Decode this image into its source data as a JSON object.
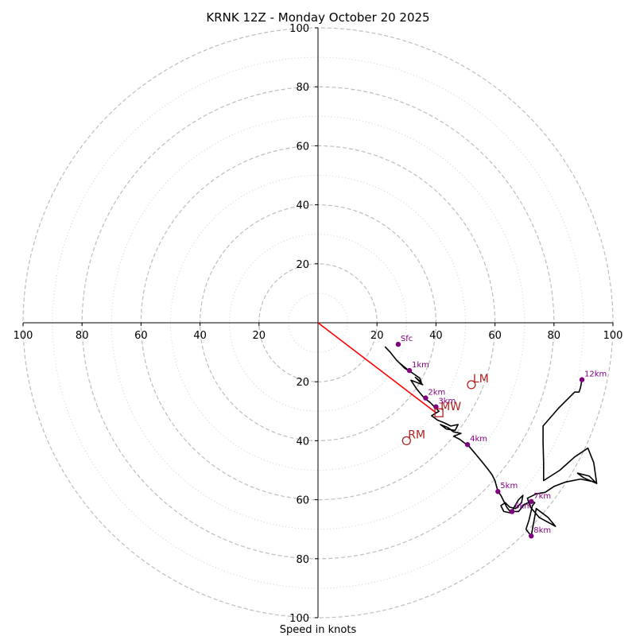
{
  "chart_data": {
    "type": "hodograph",
    "title": "KRNK 12Z - Monday October 20 2025",
    "xlabel": "Speed in knots",
    "range": [
      -100,
      100
    ],
    "major_rings": [
      20,
      40,
      60,
      80,
      100
    ],
    "minor_rings": [
      10,
      30,
      50,
      70,
      90
    ],
    "x_ticks": [
      {
        "value": -100,
        "label": "100"
      },
      {
        "value": -80,
        "label": "80"
      },
      {
        "value": -60,
        "label": "60"
      },
      {
        "value": -40,
        "label": "40"
      },
      {
        "value": -20,
        "label": "20"
      },
      {
        "value": 20,
        "label": "20"
      },
      {
        "value": 40,
        "label": "40"
      },
      {
        "value": 60,
        "label": "60"
      },
      {
        "value": 80,
        "label": "80"
      },
      {
        "value": 100,
        "label": "100"
      }
    ],
    "y_ticks": [
      {
        "value": 100,
        "label": "100"
      },
      {
        "value": 80,
        "label": "80"
      },
      {
        "value": 60,
        "label": "60"
      },
      {
        "value": 40,
        "label": "40"
      },
      {
        "value": 20,
        "label": "20"
      },
      {
        "value": -20,
        "label": "20"
      },
      {
        "value": -40,
        "label": "40"
      },
      {
        "value": -60,
        "label": "60"
      },
      {
        "value": -80,
        "label": "80"
      },
      {
        "value": -100,
        "label": "100"
      }
    ],
    "trace": [
      [
        22.7,
        -8.1
      ],
      [
        24.5,
        -10
      ],
      [
        26.5,
        -12.5
      ],
      [
        28.5,
        -14.5
      ],
      [
        30.5,
        -16
      ],
      [
        27.5,
        -13.5
      ],
      [
        29.5,
        -15.5
      ],
      [
        32,
        -17
      ],
      [
        34.5,
        -18.8
      ],
      [
        35,
        -20.2
      ],
      [
        33,
        -18.5
      ],
      [
        35.5,
        -21
      ],
      [
        31.5,
        -19.5
      ],
      [
        33.5,
        -22.5
      ],
      [
        36,
        -25.5
      ],
      [
        38,
        -27
      ],
      [
        40,
        -29
      ],
      [
        41,
        -30
      ],
      [
        38.5,
        -31.5
      ],
      [
        40.5,
        -33
      ],
      [
        43,
        -34
      ],
      [
        45,
        -35
      ],
      [
        47.5,
        -34.5
      ],
      [
        46.5,
        -36.5
      ],
      [
        43.5,
        -36
      ],
      [
        41.5,
        -34.5
      ],
      [
        44,
        -35.5
      ],
      [
        46,
        -37
      ],
      [
        48.5,
        -37.5
      ],
      [
        46,
        -38.5
      ],
      [
        48,
        -39.5
      ],
      [
        50,
        -41
      ],
      [
        50.7,
        -41.3
      ],
      [
        53,
        -44
      ],
      [
        55.5,
        -47
      ],
      [
        57.5,
        -49.5
      ],
      [
        59,
        -51.5
      ],
      [
        60,
        -53.5
      ],
      [
        61,
        -57.2
      ],
      [
        62,
        -58.5
      ],
      [
        63,
        -60.5
      ],
      [
        64,
        -62.5
      ],
      [
        65.5,
        -64.5
      ],
      [
        63,
        -64
      ],
      [
        62,
        -62
      ],
      [
        63.5,
        -61
      ],
      [
        65,
        -62.5
      ],
      [
        67,
        -63
      ],
      [
        69,
        -61
      ],
      [
        69.5,
        -58.5
      ],
      [
        68,
        -60
      ],
      [
        66.5,
        -62.5
      ],
      [
        65.8,
        -64
      ],
      [
        68,
        -64
      ],
      [
        70,
        -61.5
      ],
      [
        72.5,
        -60.5
      ],
      [
        73.5,
        -61
      ],
      [
        72.7,
        -62
      ],
      [
        71.5,
        -67
      ],
      [
        70.5,
        -70
      ],
      [
        72.3,
        -72.3
      ],
      [
        74,
        -63
      ],
      [
        76,
        -64.5
      ],
      [
        78,
        -66
      ],
      [
        80.5,
        -69
      ],
      [
        75,
        -66
      ],
      [
        72,
        -62.5
      ],
      [
        71,
        -59.5
      ],
      [
        74,
        -58
      ],
      [
        77,
        -57.5
      ],
      [
        80,
        -55.5
      ],
      [
        84,
        -54
      ],
      [
        89,
        -53
      ],
      [
        94,
        -54
      ],
      [
        92,
        -52
      ],
      [
        88,
        -51
      ],
      [
        90,
        -52.5
      ],
      [
        94.5,
        -54.5
      ],
      [
        93.5,
        -47.5
      ],
      [
        91.5,
        -42.5
      ],
      [
        87,
        -45.5
      ],
      [
        82,
        -50
      ],
      [
        76.5,
        -53.5
      ],
      [
        76.5,
        -47.5
      ],
      [
        76.3,
        -40.5
      ],
      [
        76.3,
        -35
      ],
      [
        81.5,
        -29
      ],
      [
        87,
        -23.5
      ],
      [
        88.5,
        -23.5
      ],
      [
        89,
        -22
      ],
      [
        89.5,
        -19.3
      ]
    ],
    "height_markers": [
      {
        "label": "Sfc",
        "u": 27.2,
        "v": -7.3
      },
      {
        "label": "1km",
        "u": 31.0,
        "v": -16.2
      },
      {
        "label": "2km",
        "u": 36.5,
        "v": -25.5
      },
      {
        "label": "3km",
        "u": 40.0,
        "v": -28.5
      },
      {
        "label": "4km",
        "u": 50.7,
        "v": -41.3
      },
      {
        "label": "5km",
        "u": 61.0,
        "v": -57.2
      },
      {
        "label": "6km",
        "u": 65.8,
        "v": -64.0
      },
      {
        "label": "7km",
        "u": 72.3,
        "v": -60.6
      },
      {
        "label": "8km",
        "u": 72.3,
        "v": -72.3
      },
      {
        "label": "12km",
        "u": 89.5,
        "v": -19.3
      }
    ],
    "storm_motions": [
      {
        "label": "LM",
        "u": 52.0,
        "v": -21.0,
        "marker": "circle"
      },
      {
        "label": "MW",
        "u": 41.0,
        "v": -30.5,
        "marker": "square"
      },
      {
        "label": "RM",
        "u": 30.0,
        "v": -40.0,
        "marker": "circle"
      }
    ],
    "shear_vector": {
      "from": [
        0,
        0
      ],
      "to": [
        40.0,
        -30.5
      ]
    },
    "colors": {
      "trace": "#000000",
      "markers": "#800080",
      "storm_motion": "#b22222",
      "shear": "#ff0000",
      "rings": "#bdbdbd"
    }
  }
}
